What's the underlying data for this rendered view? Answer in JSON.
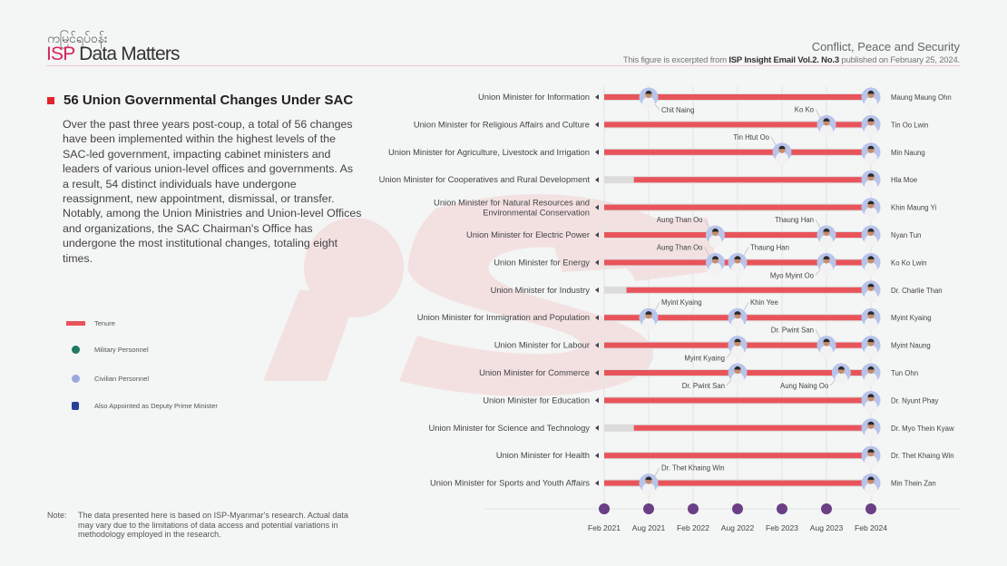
{
  "header": {
    "brand_burmese": "ကမြင်ရပ်ဝန်း",
    "brand_isp": "ISP",
    "brand_rest": " Data Matters",
    "category": "Conflict, Peace and Security",
    "source_prefix": "This figure is excerpted from ",
    "source_bold": "ISP Insight Email Vol.2. No.3",
    "source_suffix": " published on February 25, 2024."
  },
  "intro": {
    "title": "56 Union Governmental Changes Under SAC",
    "body": "Over the past three years post-coup, a total of 56 changes have been implemented within the highest levels of the SAC-led government, impacting cabinet ministers and leaders of various union-level offices and governments. As a result, 54 distinct individuals have undergone reassignment, new appointment, dismissal, or transfer. Notably, among the Union Ministries and Union-level Offices and organizations, the SAC Chairman's Office has undergone the most institutional changes, totaling eight times."
  },
  "legend": {
    "items": [
      {
        "label": "Tenure",
        "shape": "bar",
        "color": "#e8545a"
      },
      {
        "label": "Military Personnel",
        "shape": "circle",
        "color": "#1f7a62"
      },
      {
        "label": "Civilian Personnel",
        "shape": "circle",
        "color": "#9aa8dd"
      },
      {
        "label": "Also Appointed as Deputy Prime Minister",
        "shape": "square",
        "color": "#283f96"
      }
    ]
  },
  "note": {
    "label": "Note:",
    "text": "The data presented here is based on ISP-Myanmar's research. Actual data may vary due to the limitations of data access and potential variations in methodology employed in the research."
  },
  "colors": {
    "tenure": "#e8545a",
    "track": "#dcdcdc",
    "axis_dot": "#6a3f86",
    "avatar_ring": "#b8c4ea",
    "accent": "#d8245a"
  },
  "chart_data": {
    "type": "timeline",
    "title": "56 Union Governmental Changes Under SAC",
    "x_unit": "months since Feb 2021",
    "xlim": [
      0,
      36
    ],
    "x_ticks": [
      {
        "value": 0,
        "label": "Feb 2021"
      },
      {
        "value": 6,
        "label": "Aug 2021"
      },
      {
        "value": 12,
        "label": "Feb 2022"
      },
      {
        "value": 18,
        "label": "Aug 2022"
      },
      {
        "value": 24,
        "label": "Feb 2023"
      },
      {
        "value": 30,
        "label": "Aug 2023"
      },
      {
        "value": 36,
        "label": "Feb 2024"
      }
    ],
    "rows": [
      {
        "ministry": "Union Minister for Information",
        "tenure_start": 0,
        "current": "Maung Maung Ohn",
        "changes": [
          {
            "at": 6,
            "name": "Chit Naing",
            "label_pos": "below-right"
          }
        ]
      },
      {
        "ministry": "Union Minister for Religious Affairs and Culture",
        "tenure_start": 0,
        "current": "Tin Oo Lwin",
        "changes": [
          {
            "at": 30,
            "name": "Ko Ko",
            "label_pos": "above-left"
          }
        ]
      },
      {
        "ministry": "Union Minister for Agriculture, Livestock and Irrigation",
        "tenure_start": 0,
        "current": "Min Naung",
        "changes": [
          {
            "at": 24,
            "name": "Tin Htut Oo",
            "label_pos": "above-left"
          }
        ]
      },
      {
        "ministry": "Union Minister for Cooperatives and Rural Development",
        "tenure_start": 4,
        "current": "Hla Moe",
        "changes": []
      },
      {
        "ministry": "Union Minister for Natural Resources and Environmental Conservation",
        "tenure_start": 0,
        "current": "Khin Maung Yi",
        "changes": []
      },
      {
        "ministry": "Union Minister for Electric Power",
        "tenure_start": 0,
        "current": "Nyan Tun",
        "changes": [
          {
            "at": 15,
            "name": "Aung Than Oo",
            "label_pos": "above-left"
          },
          {
            "at": 30,
            "name": "Thaung Han",
            "label_pos": "above-left"
          }
        ]
      },
      {
        "ministry": "Union Minister for Energy",
        "tenure_start": 0,
        "current": "Ko Ko Lwin",
        "changes": [
          {
            "at": 15,
            "name": "Aung Than Oo",
            "label_pos": "above-left"
          },
          {
            "at": 18,
            "name": "Thaung Han",
            "label_pos": "above-right"
          },
          {
            "at": 30,
            "name": "Myo Myint Oo",
            "label_pos": "below-left"
          }
        ]
      },
      {
        "ministry": "Union Minister for Industry",
        "tenure_start": 3,
        "current": "Dr. Charlie Than",
        "changes": []
      },
      {
        "ministry": "Union Minister for Immigration and Population",
        "tenure_start": 0,
        "current": "Myint Kyaing",
        "changes": [
          {
            "at": 6,
            "name": "Myint Kyaing",
            "label_pos": "above-right"
          },
          {
            "at": 18,
            "name": "Khin Yee",
            "label_pos": "above-right"
          }
        ]
      },
      {
        "ministry": "Union Minister for Labour",
        "tenure_start": 0,
        "current": "Myint Naung",
        "changes": [
          {
            "at": 18,
            "name": "Myint Kyaing",
            "label_pos": "below-left"
          },
          {
            "at": 30,
            "name": "Dr. Pwint San",
            "label_pos": "above-left"
          }
        ]
      },
      {
        "ministry": "Union Minister for Commerce",
        "tenure_start": 0,
        "current": "Tun Ohn",
        "changes": [
          {
            "at": 18,
            "name": "Dr. Pwint San",
            "label_pos": "below-left"
          },
          {
            "at": 32,
            "name": "Aung Naing Oo",
            "label_pos": "below-left"
          }
        ]
      },
      {
        "ministry": "Union Minister for Education",
        "tenure_start": 0,
        "current": "Dr. Nyunt Phay",
        "changes": []
      },
      {
        "ministry": "Union Minister for Science and Technology",
        "tenure_start": 4,
        "current": "Dr. Myo Thein Kyaw",
        "changes": []
      },
      {
        "ministry": "Union Minister for Health",
        "tenure_start": 0,
        "current": "Dr. Thet Khaing Win",
        "changes": []
      },
      {
        "ministry": "Union Minister for Sports and Youth Affairs",
        "tenure_start": 0,
        "current": "Min Thein Zan",
        "changes": [
          {
            "at": 6,
            "name": "Dr. Thet Khaing Win",
            "label_pos": "above-right"
          }
        ]
      }
    ]
  }
}
